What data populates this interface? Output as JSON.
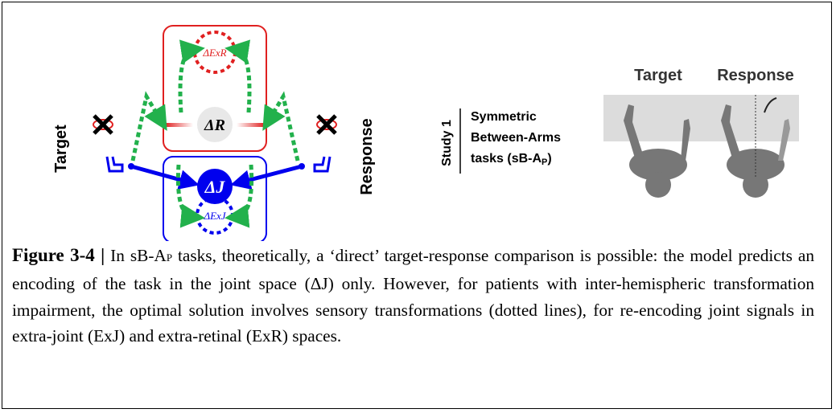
{
  "diagram": {
    "left_label": "Target",
    "right_label": "Response",
    "nodes": [
      {
        "label": "ΔR"
      },
      {
        "label": "ΔExR"
      },
      {
        "label": "ΔJ"
      },
      {
        "label": "ΔExJ"
      }
    ]
  },
  "study": {
    "label": "Study 1",
    "lines": [
      "Symmetric",
      "Between-Arms",
      "tasks (sB-A"
    ],
    "sub": "P",
    "end": ")"
  },
  "panels": [
    {
      "title": "Target"
    },
    {
      "title": "Response"
    }
  ],
  "caption": {
    "label": "Figure 3-4 |",
    "text_1": " In sB-A",
    "sub": "P",
    "text_2": " tasks, theoretically, a ‘direct’ target-response comparison is possible: the model predicts an encoding of the task in the joint space (ΔJ) only. However, for patients with inter-hemispheric transformation impairment, the optimal solution involves sensory transformations (dotted lines), for re-encoding joint signals in extra-joint (ExJ) and extra-retinal (ExR) spaces."
  }
}
